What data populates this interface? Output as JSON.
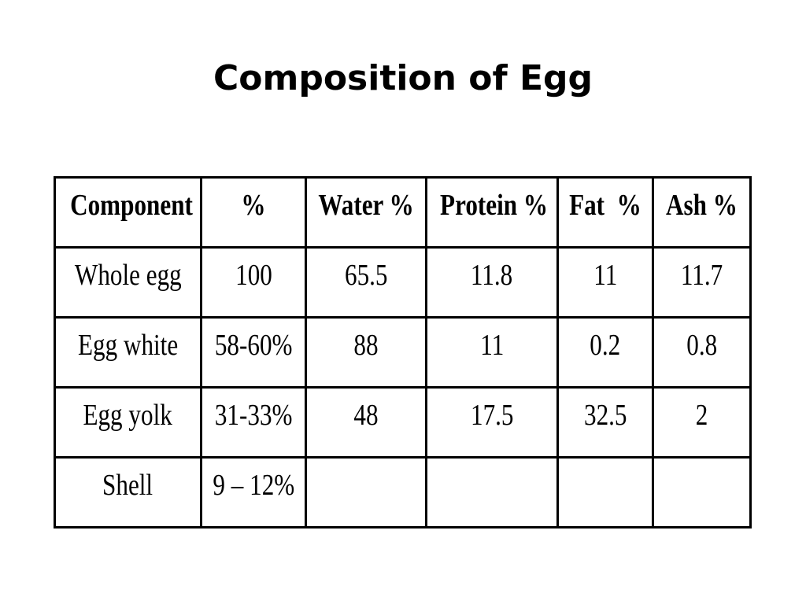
{
  "slide": {
    "title": "Composition of Egg"
  },
  "table": {
    "headers": [
      "Component",
      "%",
      "Water %",
      "Protein %",
      "Fat  %",
      "Ash %"
    ],
    "rows": [
      [
        "Whole egg",
        "100",
        "65.5",
        "11.8",
        "11",
        "11.7"
      ],
      [
        "Egg white",
        "58-60%",
        "88",
        "11",
        "0.2",
        "0.8"
      ],
      [
        "Egg yolk",
        "31-33%",
        "48",
        "17.5",
        "32.5",
        "2"
      ],
      [
        "Shell",
        "9 – 12%",
        "",
        "",
        "",
        ""
      ]
    ]
  }
}
